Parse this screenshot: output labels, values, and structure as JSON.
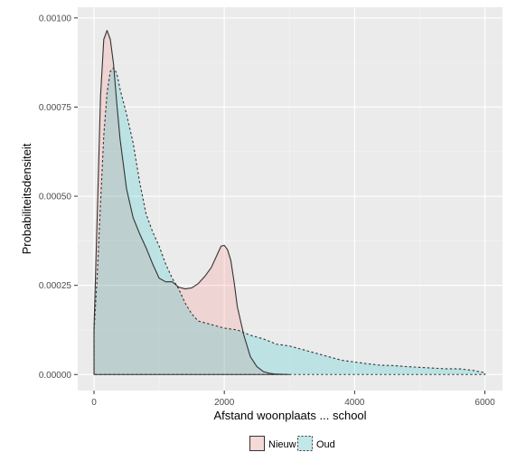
{
  "chart_data": {
    "type": "area",
    "xlabel": "Afstand woonplaats ... school",
    "ylabel": "Probabiliteitsdensiteit",
    "xlim": [
      -250,
      6270
    ],
    "ylim": [
      -4.5e-05,
      0.00103
    ],
    "x_ticks": [
      0,
      2000,
      4000,
      6000
    ],
    "x_tick_labels": [
      "0",
      "2000",
      "4000",
      "6000"
    ],
    "y_ticks": [
      0,
      0.00025,
      0.0005,
      0.00075,
      0.001
    ],
    "y_tick_labels": [
      "0.00000",
      "0.00025",
      "0.00050",
      "0.00075",
      "0.00100"
    ],
    "grid": true,
    "legend_position": "bottom",
    "colors": {
      "panel": "#ebebeb",
      "grid_major": "#ffffff",
      "grid_minor": "#f5f5f5",
      "nieuw_fill": "#f8766d",
      "oud_fill": "#00bfc4",
      "outline": "#333333"
    },
    "series": [
      {
        "name": "Nieuw",
        "line_style": "solid",
        "x": [
          0,
          50,
          100,
          150,
          200,
          250,
          300,
          350,
          400,
          500,
          600,
          700,
          800,
          900,
          1000,
          1100,
          1200,
          1300,
          1400,
          1500,
          1600,
          1700,
          1800,
          1900,
          1950,
          2000,
          2050,
          2100,
          2150,
          2200,
          2300,
          2400,
          2500,
          2600,
          2700,
          2800,
          2900,
          3000
        ],
        "y": [
          0.00013,
          0.00045,
          0.00078,
          0.00094,
          0.000965,
          0.00094,
          0.00087,
          0.00076,
          0.00066,
          0.00052,
          0.00044,
          0.000395,
          0.000355,
          0.00031,
          0.00027,
          0.00026,
          0.00026,
          0.000245,
          0.00024,
          0.000243,
          0.000255,
          0.000275,
          0.0003,
          0.00034,
          0.00036,
          0.000362,
          0.00035,
          0.00032,
          0.00026,
          0.00019,
          0.00011,
          5e-05,
          2.2e-05,
          8e-06,
          3e-06,
          1e-06,
          5e-07,
          0
        ]
      },
      {
        "name": "Oud",
        "line_style": "dashed",
        "x": [
          0,
          50,
          100,
          150,
          200,
          250,
          300,
          350,
          400,
          500,
          600,
          700,
          800,
          900,
          1000,
          1100,
          1200,
          1300,
          1400,
          1500,
          1600,
          1700,
          1800,
          1900,
          2000,
          2200,
          2400,
          2600,
          2800,
          3000,
          3200,
          3400,
          3600,
          3800,
          4000,
          4200,
          4400,
          4600,
          4800,
          5000,
          5200,
          5400,
          5600,
          5800,
          6000
        ],
        "y": [
          0.00012,
          0.00028,
          0.00048,
          0.00067,
          0.00079,
          0.00085,
          0.00086,
          0.000845,
          0.0008,
          0.00073,
          0.00065,
          0.00054,
          0.00045,
          0.0004,
          0.00036,
          0.00031,
          0.00027,
          0.00024,
          0.0002,
          0.00017,
          0.00015,
          0.000145,
          0.00014,
          0.000135,
          0.00013,
          0.000125,
          0.00011,
          0.0001,
          8.5e-05,
          8e-05,
          7e-05,
          6e-05,
          5e-05,
          4e-05,
          3.5e-05,
          3e-05,
          2.6e-05,
          2.5e-05,
          2.2e-05,
          2e-05,
          1.8e-05,
          1.6e-05,
          1.6e-05,
          1.2e-05,
          5e-06
        ]
      }
    ]
  }
}
